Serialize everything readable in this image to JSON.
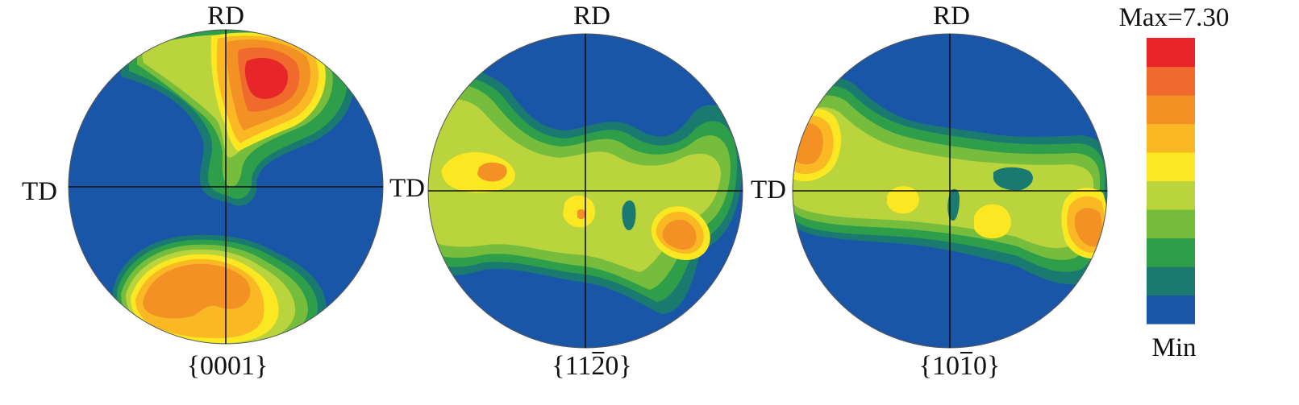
{
  "chart_data": {
    "type": "heatmap",
    "colorbar": {
      "max_label": "Max=7.30",
      "min_label": "Min",
      "max_value": 7.3,
      "colors": [
        "#1a56a8",
        "#1a7a70",
        "#2e9e4a",
        "#76bd3e",
        "#b9d43c",
        "#fbe822",
        "#f9b824",
        "#f39124",
        "#ef6a2c",
        "#e8262a"
      ]
    },
    "figures": [
      {
        "id": "p0001",
        "rd_label": "RD",
        "td_label": "TD",
        "plane_prefix": "{",
        "plane_digits": [
          "0",
          "0",
          "0",
          "1"
        ],
        "plane_suffix": "}",
        "plane_bar_index": -1
      },
      {
        "id": "p1120",
        "rd_label": "RD",
        "td_label": "TD",
        "plane_prefix": "{",
        "plane_digits": [
          "1",
          "1",
          "2",
          "0"
        ],
        "plane_suffix": "}",
        "plane_bar_index": 2
      },
      {
        "id": "p1010",
        "rd_label": "RD",
        "td_label": "TD",
        "plane_prefix": "{",
        "plane_digits": [
          "1",
          "0",
          "1",
          "0"
        ],
        "plane_suffix": "}",
        "plane_bar_index": 2
      }
    ]
  }
}
